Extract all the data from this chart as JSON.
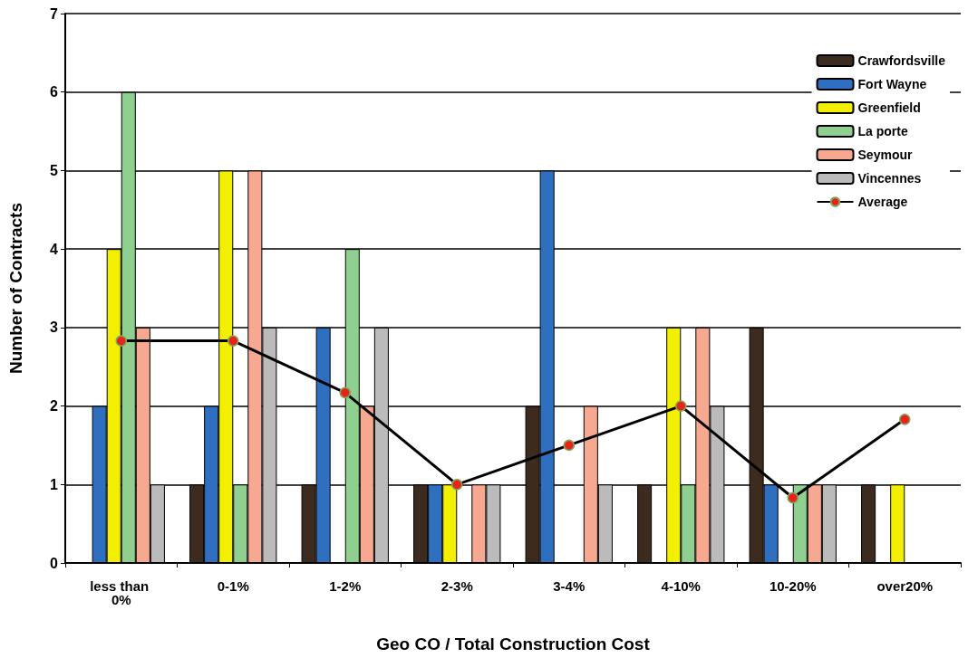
{
  "chart_data": {
    "type": "bar",
    "xlabel": "Geo CO / Total Construction Cost",
    "ylabel": "Number of Contracts",
    "categories": [
      "less than 0%",
      "0-1%",
      "1-2%",
      "2-3%",
      "3-4%",
      "4-10%",
      "10-20%",
      "over20%"
    ],
    "series": [
      {
        "name": "Crawfordsville",
        "color": "#3d2b1f",
        "values": [
          0,
          1,
          1,
          1,
          2,
          1,
          3,
          1
        ]
      },
      {
        "name": "Fort Wayne",
        "color": "#2f6fc0",
        "values": [
          2,
          2,
          3,
          1,
          5,
          0,
          1,
          0
        ]
      },
      {
        "name": "Greenfield",
        "color": "#f2ef00",
        "values": [
          4,
          5,
          0,
          1,
          0,
          3,
          0,
          1
        ]
      },
      {
        "name": "La porte",
        "color": "#8fcf8f",
        "values": [
          6,
          1,
          4,
          0,
          0,
          1,
          1,
          0
        ]
      },
      {
        "name": "Seymour",
        "color": "#f7a890",
        "values": [
          3,
          5,
          2,
          1,
          2,
          3,
          1,
          0
        ]
      },
      {
        "name": "Vincennes",
        "color": "#bbbbbb",
        "values": [
          1,
          3,
          3,
          1,
          1,
          2,
          1,
          0
        ]
      },
      {
        "name": "Average",
        "type": "line",
        "color": "#000000",
        "values": [
          2.83,
          2.83,
          2.17,
          1,
          1.5,
          2,
          0.83,
          1.83
        ]
      }
    ],
    "ylim": [
      0,
      7
    ],
    "yticks": [
      0,
      1,
      2,
      3,
      4,
      5,
      6,
      7
    ],
    "grid": "y",
    "legend": "top right",
    "marker": "circle",
    "line_style": "solid"
  }
}
